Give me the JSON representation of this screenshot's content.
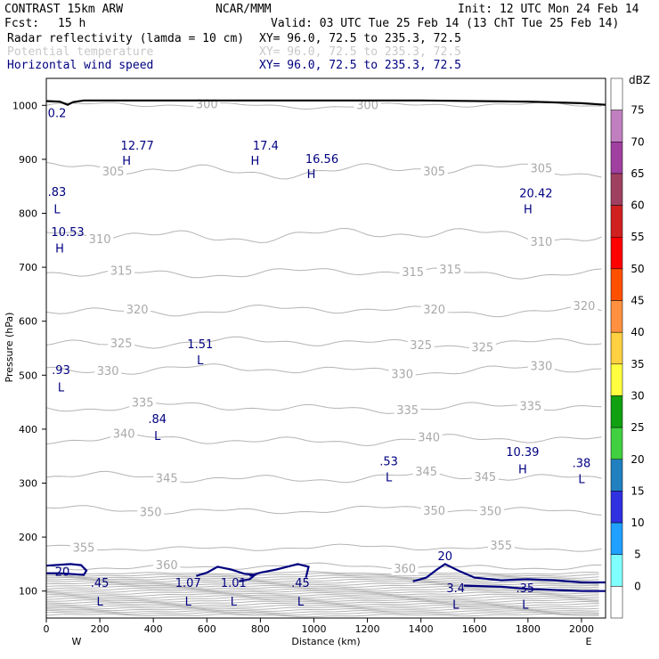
{
  "header": {
    "model": "CONTRAST 15km ARW",
    "center": "NCAR/MMM",
    "init": "Init: 12 UTC Mon 24 Feb 14",
    "fcst_label": "Fcst:",
    "fcst_value": "15 h",
    "valid": "Valid: 03 UTC Tue 25 Feb 14 (13 ChT Tue 25 Feb 14)",
    "fields": [
      {
        "name": "Radar reflectivity (lamda = 10 cm)",
        "xy": "XY=  96.0, 72.5 to 235.3, 72.5",
        "color": "#000000"
      },
      {
        "name": "Potential temperature",
        "xy": "XY=  96.0, 72.5 to 235.3, 72.5",
        "color": "#c8c8c8"
      },
      {
        "name": "Horizontal wind speed",
        "xy": "XY=  96.0, 72.5 to 235.3, 72.5",
        "color": "#000080"
      }
    ]
  },
  "chart_data": {
    "type": "contour-cross-section",
    "xlabel": "Distance (km)",
    "ylabel": "Pressure (hPa)",
    "xlim": [
      0,
      2090
    ],
    "ylim": [
      1050,
      50
    ],
    "x_ticks": [
      0,
      200,
      400,
      600,
      800,
      1000,
      1200,
      1400,
      1600,
      1800,
      2000
    ],
    "y_ticks": [
      100,
      200,
      300,
      400,
      500,
      600,
      700,
      800,
      900,
      1000
    ],
    "x_end_labels": {
      "left": "W",
      "right": "E"
    },
    "theta_lines": [
      {
        "value": 300,
        "pressure": 1000,
        "amp": 6,
        "labels": [
          [
            600,
            "300"
          ],
          [
            1200,
            "300"
          ]
        ]
      },
      {
        "value": 305,
        "pressure": 880,
        "amp": 14,
        "labels": [
          [
            250,
            "305"
          ],
          [
            1450,
            "305"
          ],
          [
            1850,
            "305"
          ]
        ]
      },
      {
        "value": 310,
        "pressure": 760,
        "amp": 14,
        "labels": [
          [
            200,
            "310"
          ],
          [
            1850,
            "310"
          ]
        ]
      },
      {
        "value": 315,
        "pressure": 690,
        "amp": 10,
        "labels": [
          [
            280,
            "315"
          ],
          [
            1370,
            "315"
          ],
          [
            1510,
            "315"
          ]
        ]
      },
      {
        "value": 320,
        "pressure": 620,
        "amp": 10,
        "labels": [
          [
            340,
            "320"
          ],
          [
            1450,
            "320"
          ],
          [
            2010,
            "320"
          ]
        ]
      },
      {
        "value": 325,
        "pressure": 560,
        "amp": 10,
        "labels": [
          [
            280,
            "325"
          ],
          [
            1400,
            "325"
          ],
          [
            1630,
            "325"
          ]
        ]
      },
      {
        "value": 330,
        "pressure": 510,
        "amp": 10,
        "labels": [
          [
            230,
            "330"
          ],
          [
            1330,
            "330"
          ],
          [
            1850,
            "330"
          ]
        ]
      },
      {
        "value": 335,
        "pressure": 440,
        "amp": 10,
        "labels": [
          [
            360,
            "335"
          ],
          [
            1350,
            "335"
          ],
          [
            1810,
            "335"
          ]
        ]
      },
      {
        "value": 340,
        "pressure": 380,
        "amp": 10,
        "labels": [
          [
            290,
            "340"
          ],
          [
            1430,
            "340"
          ]
        ]
      },
      {
        "value": 345,
        "pressure": 310,
        "amp": 10,
        "labels": [
          [
            450,
            "345"
          ],
          [
            1420,
            "345"
          ],
          [
            1640,
            "345"
          ]
        ]
      },
      {
        "value": 350,
        "pressure": 250,
        "amp": 8,
        "labels": [
          [
            390,
            "350"
          ],
          [
            1450,
            "350"
          ],
          [
            1660,
            "350"
          ]
        ]
      },
      {
        "value": 355,
        "pressure": 180,
        "amp": 6,
        "labels": [
          [
            140,
            "355"
          ],
          [
            1700,
            "355"
          ]
        ]
      },
      {
        "value": 360,
        "pressure": 145,
        "amp": 6,
        "labels": [
          [
            450,
            "360"
          ],
          [
            1340,
            "360"
          ]
        ]
      }
    ],
    "wind_labels": [
      {
        "text": "20",
        "x": 60,
        "p": 128
      },
      {
        "text": "L",
        "x": 200,
        "p": 73
      },
      {
        "text": ".45",
        "x": 200,
        "p": 108
      },
      {
        "text": "L",
        "x": 530,
        "p": 73
      },
      {
        "text": "1.07",
        "x": 530,
        "p": 108
      },
      {
        "text": "L",
        "x": 700,
        "p": 73
      },
      {
        "text": "1.01",
        "x": 700,
        "p": 108
      },
      {
        "text": "L",
        "x": 950,
        "p": 73
      },
      {
        "text": ".45",
        "x": 950,
        "p": 108
      },
      {
        "text": "L",
        "x": 1530,
        "p": 67
      },
      {
        "text": "3.4",
        "x": 1530,
        "p": 98
      },
      {
        "text": "L",
        "x": 1790,
        "p": 67
      },
      {
        "text": ".35",
        "x": 1790,
        "p": 98
      },
      {
        "text": "20",
        "x": 1490,
        "p": 157
      },
      {
        "text": "L",
        "x": 1280,
        "p": 303
      },
      {
        "text": ".53",
        "x": 1280,
        "p": 333
      },
      {
        "text": "H",
        "x": 1780,
        "p": 318
      },
      {
        "text": "10.39",
        "x": 1780,
        "p": 350
      },
      {
        "text": "L",
        "x": 2000,
        "p": 300
      },
      {
        "text": ".38",
        "x": 2000,
        "p": 330
      },
      {
        "text": "L",
        "x": 415,
        "p": 380
      },
      {
        "text": ".84",
        "x": 415,
        "p": 411
      },
      {
        "text": "L",
        "x": 55,
        "p": 470
      },
      {
        "text": ".93",
        "x": 55,
        "p": 502
      },
      {
        "text": "L",
        "x": 575,
        "p": 520
      },
      {
        "text": "1.51",
        "x": 575,
        "p": 550
      },
      {
        "text": "H",
        "x": 50,
        "p": 727
      },
      {
        "text": "10.53",
        "x": 80,
        "p": 758
      },
      {
        "text": "L",
        "x": 10,
        "p": 800
      },
      {
        "text": ".83",
        "x": 25,
        "p": 832
      },
      {
        "text": "H",
        "x": 1800,
        "p": 800
      },
      {
        "text": "20.42",
        "x": 1830,
        "p": 830
      },
      {
        "text": "H",
        "x": 300,
        "p": 890
      },
      {
        "text": "12.77",
        "x": 340,
        "p": 918
      },
      {
        "text": "H",
        "x": 780,
        "p": 890
      },
      {
        "text": "17.4",
        "x": 820,
        "p": 918
      },
      {
        "text": "H",
        "x": 990,
        "p": 865
      },
      {
        "text": "16.56",
        "x": 1030,
        "p": 893
      },
      {
        "text": "0.2",
        "x": 40,
        "p": 978
      }
    ],
    "colorbar": {
      "unit": "dBZ",
      "levels": [
        "75",
        "70",
        "65",
        "60",
        "55",
        "50",
        "45",
        "40",
        "35",
        "30",
        "25",
        "20",
        "15",
        "10",
        "5",
        "0"
      ],
      "colors": [
        "#ffffff",
        "#c080c0",
        "#a040a0",
        "#a04060",
        "#d02020",
        "#ff0000",
        "#ff5000",
        "#ff9040",
        "#ffd040",
        "#ffff40",
        "#10a010",
        "#40d040",
        "#2080c0",
        "#3030e0",
        "#20a0ff",
        "#80ffff",
        "#ffffff"
      ]
    }
  }
}
